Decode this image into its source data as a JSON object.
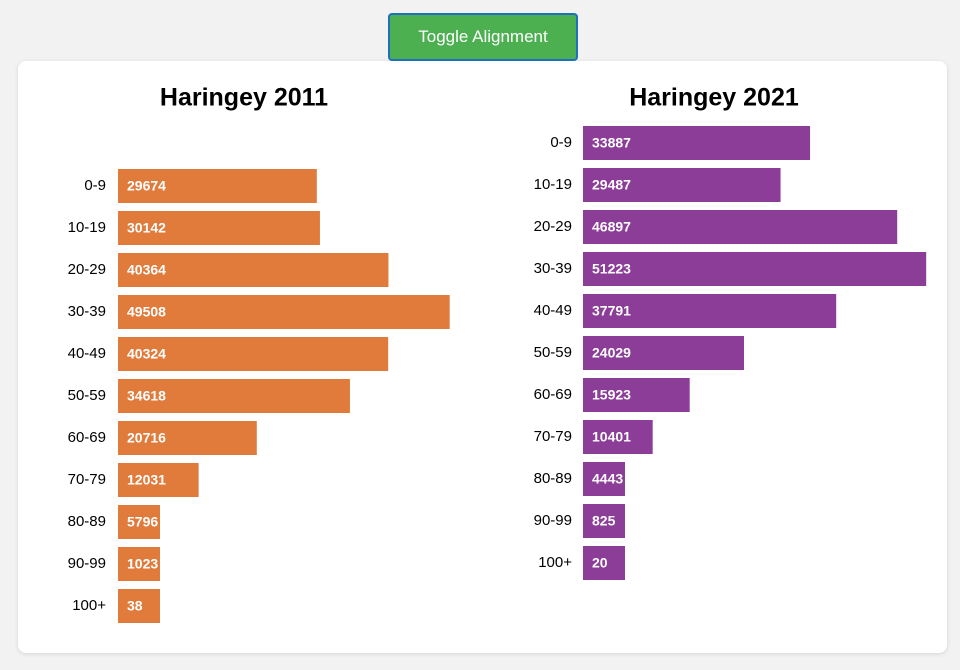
{
  "button": "Toggle Alignment",
  "chart_data": [
    {
      "type": "bar",
      "orientation": "horizontal",
      "title": "Haringey 2011",
      "color": "#e07b3c",
      "categories": [
        "0-9",
        "10-19",
        "20-29",
        "30-39",
        "40-49",
        "50-59",
        "60-69",
        "70-79",
        "80-89",
        "90-99",
        "100+"
      ],
      "values": [
        29674,
        30142,
        40364,
        49508,
        40324,
        34618,
        20716,
        12031,
        5796,
        1023,
        38
      ]
    },
    {
      "type": "bar",
      "orientation": "horizontal",
      "title": "Haringey 2021",
      "color": "#8b3d98",
      "categories": [
        "0-9",
        "10-19",
        "20-29",
        "30-39",
        "40-49",
        "50-59",
        "60-69",
        "70-79",
        "80-89",
        "90-99",
        "100+"
      ],
      "values": [
        33887,
        29487,
        46897,
        51223,
        37791,
        24029,
        15923,
        10401,
        4443,
        825,
        20
      ]
    }
  ]
}
